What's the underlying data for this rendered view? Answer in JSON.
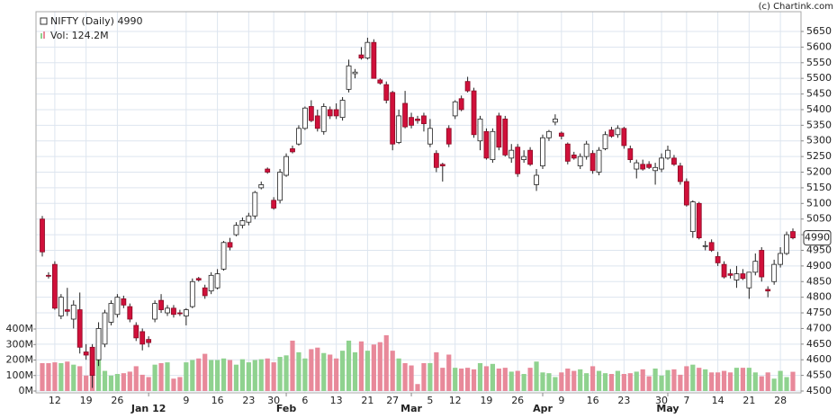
{
  "chart_data": {
    "type": "candlestick",
    "title": "NIFTY (Daily) 4990",
    "volume_label": "Vol: 124.2M",
    "credit": "(c) Chartink.com",
    "last_price": 4990,
    "up_color": "#ffffff",
    "down_color": "#d0103a",
    "volume_up_color": "#8fd28f",
    "volume_down_color": "#e8899a",
    "grid": true,
    "categories": [
      null,
      null,
      "12",
      null,
      null,
      null,
      null,
      "19",
      null,
      null,
      null,
      null,
      "26",
      null,
      null,
      null,
      null,
      null,
      null,
      null,
      null,
      null,
      null,
      "9",
      null,
      null,
      null,
      null,
      "16",
      null,
      null,
      null,
      null,
      "23",
      null,
      null,
      null,
      "30",
      null,
      null,
      null,
      null,
      "6",
      null,
      null,
      null,
      null,
      "13",
      null,
      null,
      null,
      null,
      "21",
      null,
      null,
      null,
      "27",
      null,
      null,
      null,
      null,
      null,
      "5",
      null,
      null,
      null,
      "12",
      null,
      null,
      null,
      null,
      "19",
      null,
      null,
      null,
      null,
      "26",
      null,
      null,
      null,
      null,
      null,
      null,
      "9",
      null,
      null,
      null,
      null,
      "16",
      null,
      null,
      null,
      null,
      "23",
      null,
      null,
      null,
      null,
      null,
      "30",
      null,
      null,
      null,
      "7",
      null,
      null,
      null,
      null,
      "14",
      null,
      null,
      null,
      null,
      "21",
      null,
      null,
      null,
      null,
      "28",
      null,
      null
    ],
    "month_labels": [
      {
        "value": 17,
        "label": "Jan 12"
      },
      {
        "value": 39,
        "label": "Feb"
      },
      {
        "value": 59,
        "label": "Mar"
      },
      {
        "value": 80,
        "label": "Apr"
      },
      {
        "value": 100,
        "label": "May"
      }
    ],
    "open": [
      5050,
      4870,
      4905,
      4740,
      4760,
      4730,
      4760,
      4625,
      4640,
      4600,
      4650,
      4720,
      4745,
      4795,
      4770,
      4710,
      4690,
      4665,
      4730,
      4790,
      4750,
      4765,
      4750,
      4740,
      4770,
      4860,
      4830,
      4820,
      4830,
      4890,
      4975,
      5000,
      5030,
      5040,
      5060,
      5150,
      5210,
      5110,
      5110,
      5190,
      5275,
      5290,
      5340,
      5410,
      5380,
      5330,
      5400,
      5400,
      5375,
      5465,
      5515,
      5575,
      5565,
      5615,
      5495,
      5480,
      5455,
      5295,
      5420,
      5375,
      5370,
      5380,
      5290,
      5260,
      5225,
      5340,
      5380,
      5435,
      5490,
      5460,
      5300,
      5330,
      5240,
      5380,
      5370,
      5245,
      5280,
      5240,
      5270,
      5160,
      5220,
      5310,
      5360,
      5325,
      5290,
      5255,
      5220,
      5250,
      5260,
      5200,
      5275,
      5335,
      5320,
      5340,
      5275,
      5210,
      5225,
      5225,
      5205,
      5210,
      5245,
      5245,
      5220,
      5170,
      5010,
      5100,
      4965,
      4975,
      4930,
      4905,
      4875,
      4855,
      4875,
      4830,
      4880,
      4950,
      4825,
      4850,
      4905,
      4940,
      5010
    ],
    "high": [
      5060,
      4880,
      4915,
      4810,
      4830,
      4790,
      4815,
      4650,
      4650,
      4720,
      4760,
      4790,
      4810,
      4805,
      4780,
      4720,
      4700,
      4675,
      4790,
      4810,
      4775,
      4775,
      4760,
      4765,
      4860,
      4865,
      4840,
      4880,
      4890,
      4980,
      4990,
      5040,
      5055,
      5070,
      5140,
      5170,
      5215,
      5120,
      5210,
      5260,
      5285,
      5350,
      5410,
      5430,
      5400,
      5420,
      5410,
      5420,
      5440,
      5560,
      5530,
      5600,
      5630,
      5625,
      5500,
      5490,
      5460,
      5400,
      5460,
      5390,
      5380,
      5390,
      5370,
      5270,
      5230,
      5350,
      5430,
      5445,
      5505,
      5470,
      5380,
      5340,
      5340,
      5390,
      5380,
      5290,
      5290,
      5270,
      5280,
      5210,
      5320,
      5335,
      5385,
      5330,
      5295,
      5265,
      5260,
      5300,
      5270,
      5280,
      5330,
      5345,
      5350,
      5345,
      5285,
      5240,
      5240,
      5235,
      5230,
      5260,
      5285,
      5255,
      5230,
      5180,
      5110,
      5105,
      4980,
      4985,
      4945,
      4915,
      4890,
      4900,
      4890,
      4880,
      4940,
      4960,
      4835,
      4920,
      4960,
      5010,
      5020
    ],
    "low": [
      4930,
      4860,
      4760,
      4730,
      4740,
      4700,
      4620,
      4600,
      4510,
      4580,
      4640,
      4710,
      4735,
      4765,
      4720,
      4660,
      4630,
      4640,
      4720,
      4750,
      4740,
      4735,
      4740,
      4710,
      4765,
      4850,
      4795,
      4810,
      4825,
      4885,
      4950,
      4995,
      5020,
      5030,
      5050,
      5145,
      5195,
      5080,
      5100,
      5185,
      5260,
      5285,
      5335,
      5360,
      5330,
      5320,
      5370,
      5370,
      5365,
      5455,
      5500,
      5560,
      5560,
      5500,
      5480,
      5420,
      5270,
      5290,
      5340,
      5340,
      5355,
      5330,
      5280,
      5200,
      5170,
      5280,
      5370,
      5395,
      5455,
      5310,
      5270,
      5240,
      5230,
      5270,
      5250,
      5230,
      5185,
      5230,
      5220,
      5140,
      5210,
      5300,
      5350,
      5305,
      5225,
      5240,
      5210,
      5240,
      5195,
      5190,
      5270,
      5310,
      5310,
      5275,
      5230,
      5180,
      5205,
      5210,
      5160,
      5200,
      5240,
      5220,
      5160,
      5090,
      4990,
      4985,
      4950,
      4945,
      4900,
      4860,
      4860,
      4830,
      4855,
      4795,
      4870,
      4850,
      4800,
      4840,
      4895,
      4935,
      4985
    ],
    "close": [
      4945,
      4868,
      4765,
      4800,
      4755,
      4775,
      4640,
      4615,
      4550,
      4700,
      4750,
      4780,
      4800,
      4775,
      4730,
      4670,
      4650,
      4655,
      4780,
      4760,
      4765,
      4745,
      4748,
      4760,
      4850,
      4855,
      4805,
      4870,
      4875,
      4975,
      4960,
      5030,
      5045,
      5060,
      5135,
      5160,
      5200,
      5085,
      5200,
      5250,
      5265,
      5340,
      5405,
      5365,
      5340,
      5410,
      5380,
      5380,
      5430,
      5540,
      5520,
      5565,
      5615,
      5500,
      5485,
      5430,
      5290,
      5380,
      5345,
      5350,
      5365,
      5355,
      5340,
      5215,
      5220,
      5290,
      5425,
      5400,
      5460,
      5320,
      5370,
      5245,
      5330,
      5280,
      5255,
      5270,
      5195,
      5250,
      5225,
      5190,
      5310,
      5330,
      5370,
      5315,
      5235,
      5245,
      5250,
      5290,
      5205,
      5270,
      5320,
      5315,
      5340,
      5285,
      5240,
      5230,
      5210,
      5215,
      5215,
      5245,
      5270,
      5225,
      5170,
      5095,
      5105,
      4990,
      4965,
      4950,
      4910,
      4865,
      4870,
      4875,
      4860,
      4880,
      4915,
      4865,
      4820,
      4905,
      4940,
      5000,
      4990
    ],
    "volume": [
      180,
      180,
      185,
      180,
      190,
      170,
      160,
      100,
      170,
      200,
      130,
      100,
      110,
      115,
      125,
      160,
      105,
      90,
      170,
      180,
      185,
      80,
      90,
      185,
      200,
      210,
      240,
      200,
      200,
      210,
      200,
      170,
      205,
      185,
      200,
      205,
      210,
      185,
      220,
      230,
      325,
      250,
      210,
      270,
      280,
      245,
      235,
      210,
      260,
      325,
      250,
      320,
      260,
      300,
      315,
      360,
      260,
      210,
      180,
      165,
      45,
      180,
      180,
      250,
      150,
      235,
      150,
      145,
      150,
      140,
      180,
      160,
      175,
      145,
      150,
      125,
      130,
      110,
      150,
      190,
      120,
      115,
      90,
      120,
      145,
      130,
      140,
      115,
      160,
      130,
      115,
      110,
      130,
      110,
      115,
      125,
      140,
      95,
      145,
      100,
      135,
      140,
      105,
      160,
      170,
      150,
      140,
      120,
      120,
      130,
      120,
      150,
      150,
      150,
      120,
      95,
      120,
      80,
      130,
      90,
      124.2
    ],
    "ylim": [
      4500,
      5650
    ],
    "yticks": [
      4500,
      4550,
      4600,
      4650,
      4700,
      4750,
      4800,
      4850,
      4900,
      4950,
      5000,
      5050,
      5100,
      5150,
      5200,
      5250,
      5300,
      5350,
      5400,
      5450,
      5500,
      5550,
      5600,
      5650
    ],
    "y2lim": [
      0,
      400
    ],
    "y2ticks": [
      {
        "value": 0,
        "label": "0M"
      },
      {
        "value": 100,
        "label": "100M"
      },
      {
        "value": 200,
        "label": "200M"
      },
      {
        "value": 300,
        "label": "300M"
      },
      {
        "value": 400,
        "label": "400M"
      }
    ]
  }
}
